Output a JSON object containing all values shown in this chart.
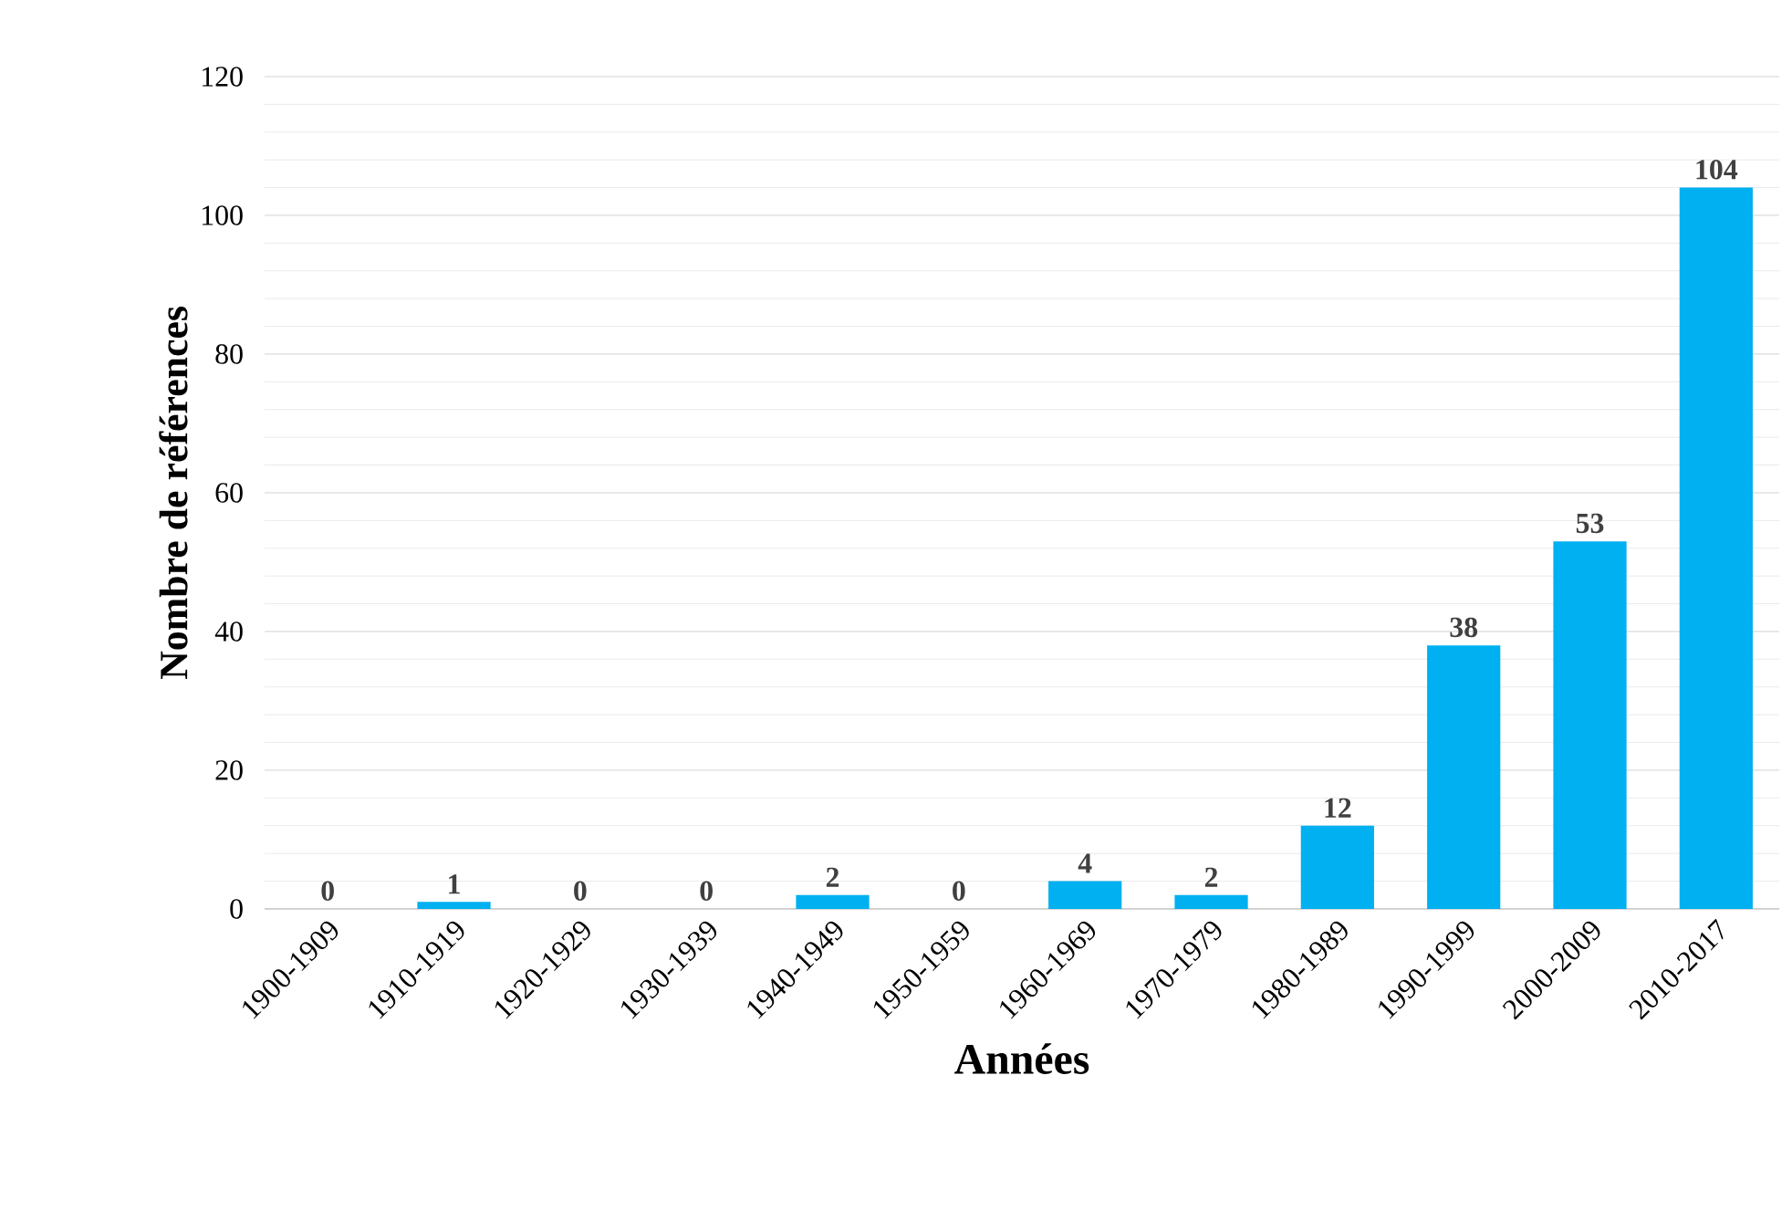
{
  "chart_data": {
    "type": "bar",
    "xlabel": "Années",
    "ylabel": "Nombre de références",
    "categories": [
      "1900-1909",
      "1910-1919",
      "1920-1929",
      "1930-1939",
      "1940-1949",
      "1950-1959",
      "1960-1969",
      "1970-1979",
      "1980-1989",
      "1990-1999",
      "2000-2009",
      "2010-2017"
    ],
    "values": [
      0,
      1,
      0,
      0,
      2,
      0,
      4,
      2,
      12,
      38,
      53,
      104
    ],
    "color": "#00b0f0",
    "ylim": [
      0,
      120
    ],
    "yticks": [
      0,
      20,
      40,
      60,
      80,
      100,
      120
    ],
    "grid": "y",
    "data_labels": true
  }
}
